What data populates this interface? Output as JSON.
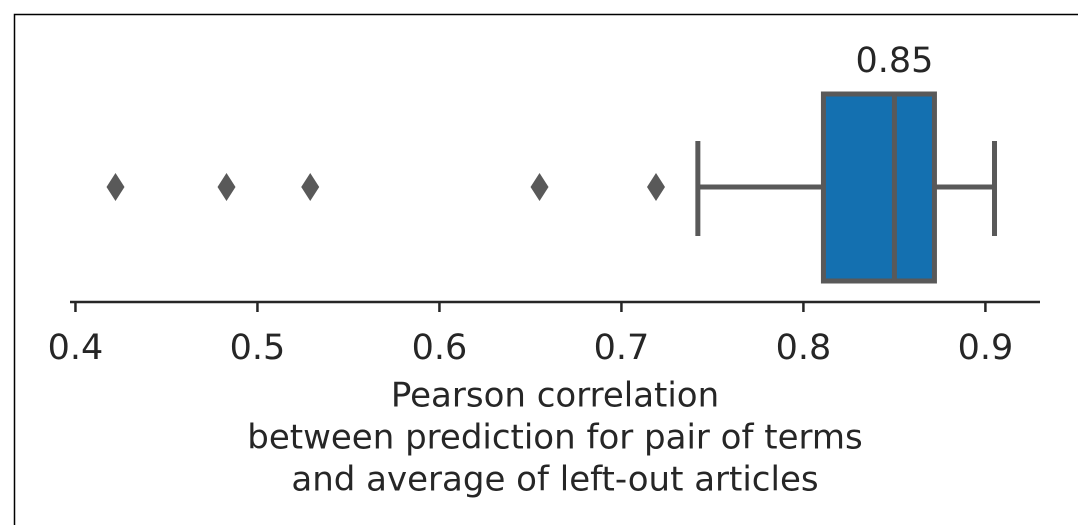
{
  "chart_data": {
    "type": "box",
    "orientation": "horizontal",
    "xlabel": [
      "Pearson correlation",
      "between prediction for pair of terms",
      "and average of left-out articles"
    ],
    "xlim": [
      0.397,
      0.93
    ],
    "xticks": [
      0.4,
      0.5,
      0.6,
      0.7,
      0.8,
      0.9
    ],
    "box": {
      "whislo": 0.742,
      "q1": 0.811,
      "med": 0.85,
      "q3": 0.872,
      "whishi": 0.905,
      "fliers": [
        0.422,
        0.483,
        0.529,
        0.655,
        0.719
      ],
      "color": "#1470b0",
      "edge_color": "#595959"
    },
    "median_label": true
  }
}
